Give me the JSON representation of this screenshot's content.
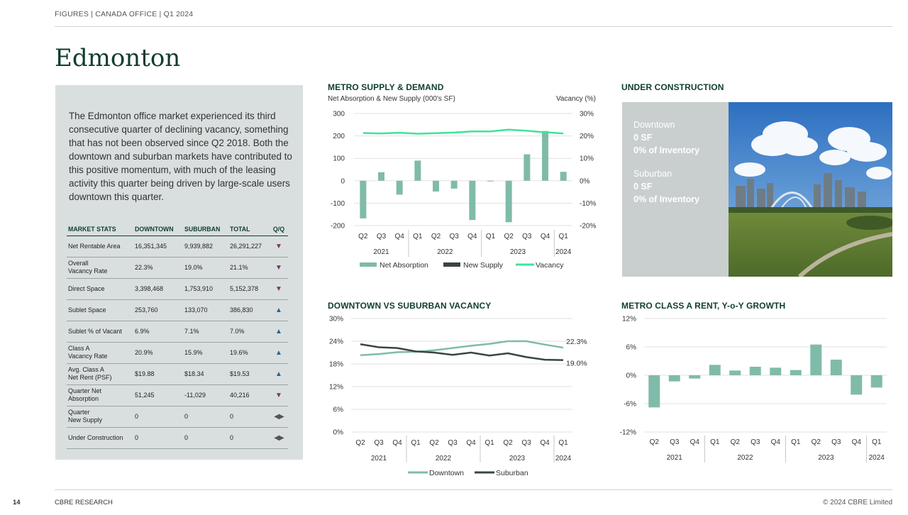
{
  "header": {
    "breadcrumb": "FIGURES  |  CANADA OFFICE  |  Q1 2024"
  },
  "page_title": "Edmonton",
  "intro_text": "The Edmonton office market experienced its third consecutive quarter of declining vacancy, something that has not been observed since Q2 2018. Both the downtown and suburban markets have contributed to this positive momentum, with much of the leasing activity this quarter being driven by large-scale users downtown this quarter.",
  "market_stats": {
    "headers": [
      "MARKET STATS",
      "DOWNTOWN",
      "SUBURBAN",
      "TOTAL",
      "Q/Q"
    ],
    "rows": [
      {
        "label": "Net Rentable Area",
        "downtown": "16,351,345",
        "suburban": "9,939,882",
        "total": "26,291,227",
        "qq": "down"
      },
      {
        "label": "Overall\nVacancy Rate",
        "downtown": "22.3%",
        "suburban": "19.0%",
        "total": "21.1%",
        "qq": "down"
      },
      {
        "label": "Direct Space",
        "downtown": "3,398,468",
        "suburban": "1,753,910",
        "total": "5,152,378",
        "qq": "down"
      },
      {
        "label": "Sublet Space",
        "downtown": "253,760",
        "suburban": "133,070",
        "total": "386,830",
        "qq": "up"
      },
      {
        "label": "Sublet % of Vacant",
        "downtown": "6.9%",
        "suburban": "7.1%",
        "total": "7.0%",
        "qq": "up"
      },
      {
        "label": "Class A\nVacancy Rate",
        "downtown": "20.9%",
        "suburban": "15.9%",
        "total": "19.6%",
        "qq": "up"
      },
      {
        "label": "Avg. Class A\nNet Rent (PSF)",
        "downtown": "$19.88",
        "suburban": "$18.34",
        "total": "$19.53",
        "qq": "up"
      },
      {
        "label": "Quarter Net\nAbsorption",
        "downtown": "51,245",
        "suburban": "-11,029",
        "total": "40,216",
        "qq": "down"
      },
      {
        "label": "Quarter\nNew Supply",
        "downtown": "0",
        "suburban": "0",
        "total": "0",
        "qq": "flat"
      },
      {
        "label": "Under Construction",
        "downtown": "0",
        "suburban": "0",
        "total": "0",
        "qq": "flat"
      }
    ]
  },
  "under_construction": {
    "title": "UNDER CONSTRUCTION",
    "downtown_label": "Downtown",
    "downtown_sf": "0 SF",
    "downtown_pct": "0% of Inventory",
    "suburban_label": "Suburban",
    "suburban_sf": "0 SF",
    "suburban_pct": "0% of Inventory"
  },
  "colors": {
    "dark_green": "#0f3d2e",
    "bar_teal": "#80bbaa",
    "vacancy_green": "#3fe39b",
    "supply_dark": "#3a4445",
    "downtown_line": "#80bbaa",
    "suburban_line": "#3a4445"
  },
  "chart_data": [
    {
      "type": "bar",
      "title": "METRO SUPPLY & DEMAND",
      "ylabel": "Net Absorption & New Supply (000's SF)",
      "y2label": "Vacancy (%)",
      "quarters": [
        "Q2",
        "Q3",
        "Q4",
        "Q1",
        "Q2",
        "Q3",
        "Q4",
        "Q1",
        "Q2",
        "Q3",
        "Q4",
        "Q1"
      ],
      "years": [
        {
          "label": "2021",
          "span": 3
        },
        {
          "label": "2022",
          "span": 4
        },
        {
          "label": "2023",
          "span": 4
        },
        {
          "label": "2024",
          "span": 1
        }
      ],
      "ylim": [
        -200,
        300
      ],
      "yticks": [
        "300",
        "200",
        "100",
        "0",
        "-100",
        "-200"
      ],
      "y2ticks": [
        "30%",
        "20%",
        "10%",
        "0%",
        "-10%",
        "-20%"
      ],
      "y2lim": [
        -20,
        30
      ],
      "series": [
        {
          "name": "Net Absorption",
          "kind": "bar",
          "values": [
            -168,
            38,
            -62,
            90,
            -48,
            -35,
            -175,
            -3,
            -185,
            118,
            222,
            40
          ]
        },
        {
          "name": "New Supply",
          "kind": "bar-dark",
          "values": [
            0,
            0,
            0,
            0,
            0,
            0,
            0,
            0,
            0,
            0,
            0,
            0
          ]
        },
        {
          "name": "Vacancy",
          "kind": "line-y2",
          "values": [
            21.3,
            21.1,
            21.4,
            21.0,
            21.2,
            21.5,
            22.0,
            22.0,
            22.8,
            22.3,
            21.6,
            21.1
          ]
        }
      ]
    },
    {
      "type": "line",
      "title": "DOWNTOWN VS SUBURBAN VACANCY",
      "quarters": [
        "Q2",
        "Q3",
        "Q4",
        "Q1",
        "Q2",
        "Q3",
        "Q4",
        "Q1",
        "Q2",
        "Q3",
        "Q4",
        "Q1"
      ],
      "years": [
        {
          "label": "2021",
          "span": 3
        },
        {
          "label": "2022",
          "span": 4
        },
        {
          "label": "2023",
          "span": 4
        },
        {
          "label": "2024",
          "span": 1
        }
      ],
      "ylim": [
        0,
        30
      ],
      "yticks": [
        "30%",
        "24%",
        "18%",
        "12%",
        "6%",
        "0%"
      ],
      "end_labels": [
        "22.3%",
        "19.0%"
      ],
      "series": [
        {
          "name": "Downtown",
          "values": [
            20.3,
            20.6,
            21.1,
            21.2,
            21.6,
            22.2,
            22.8,
            23.3,
            24.0,
            24.0,
            23.1,
            22.3
          ]
        },
        {
          "name": "Suburban",
          "values": [
            23.2,
            22.4,
            22.2,
            21.3,
            21.0,
            20.4,
            21.0,
            20.2,
            20.8,
            19.8,
            19.1,
            19.0
          ]
        }
      ]
    },
    {
      "type": "bar",
      "title": "METRO CLASS A RENT, Y-o-Y GROWTH",
      "quarters": [
        "Q2",
        "Q3",
        "Q4",
        "Q1",
        "Q2",
        "Q3",
        "Q4",
        "Q1",
        "Q2",
        "Q3",
        "Q4",
        "Q1"
      ],
      "years": [
        {
          "label": "2021",
          "span": 3
        },
        {
          "label": "2022",
          "span": 4
        },
        {
          "label": "2023",
          "span": 4
        },
        {
          "label": "2024",
          "span": 1
        }
      ],
      "ylim": [
        -12,
        12
      ],
      "yticks": [
        "12%",
        "6%",
        "0%",
        "-6%",
        "-12%"
      ],
      "values": [
        -6.8,
        -1.3,
        -0.7,
        2.2,
        1.0,
        1.8,
        1.6,
        1.1,
        6.5,
        3.3,
        -4.1,
        -2.6
      ]
    }
  ],
  "legends": {
    "supply": [
      "Net Absorption",
      "New Supply",
      "Vacancy"
    ],
    "vacancy": [
      "Downtown",
      "Suburban"
    ]
  },
  "footer": {
    "page": "14",
    "left": "CBRE RESEARCH",
    "right": "© 2024 CBRE Limited"
  }
}
